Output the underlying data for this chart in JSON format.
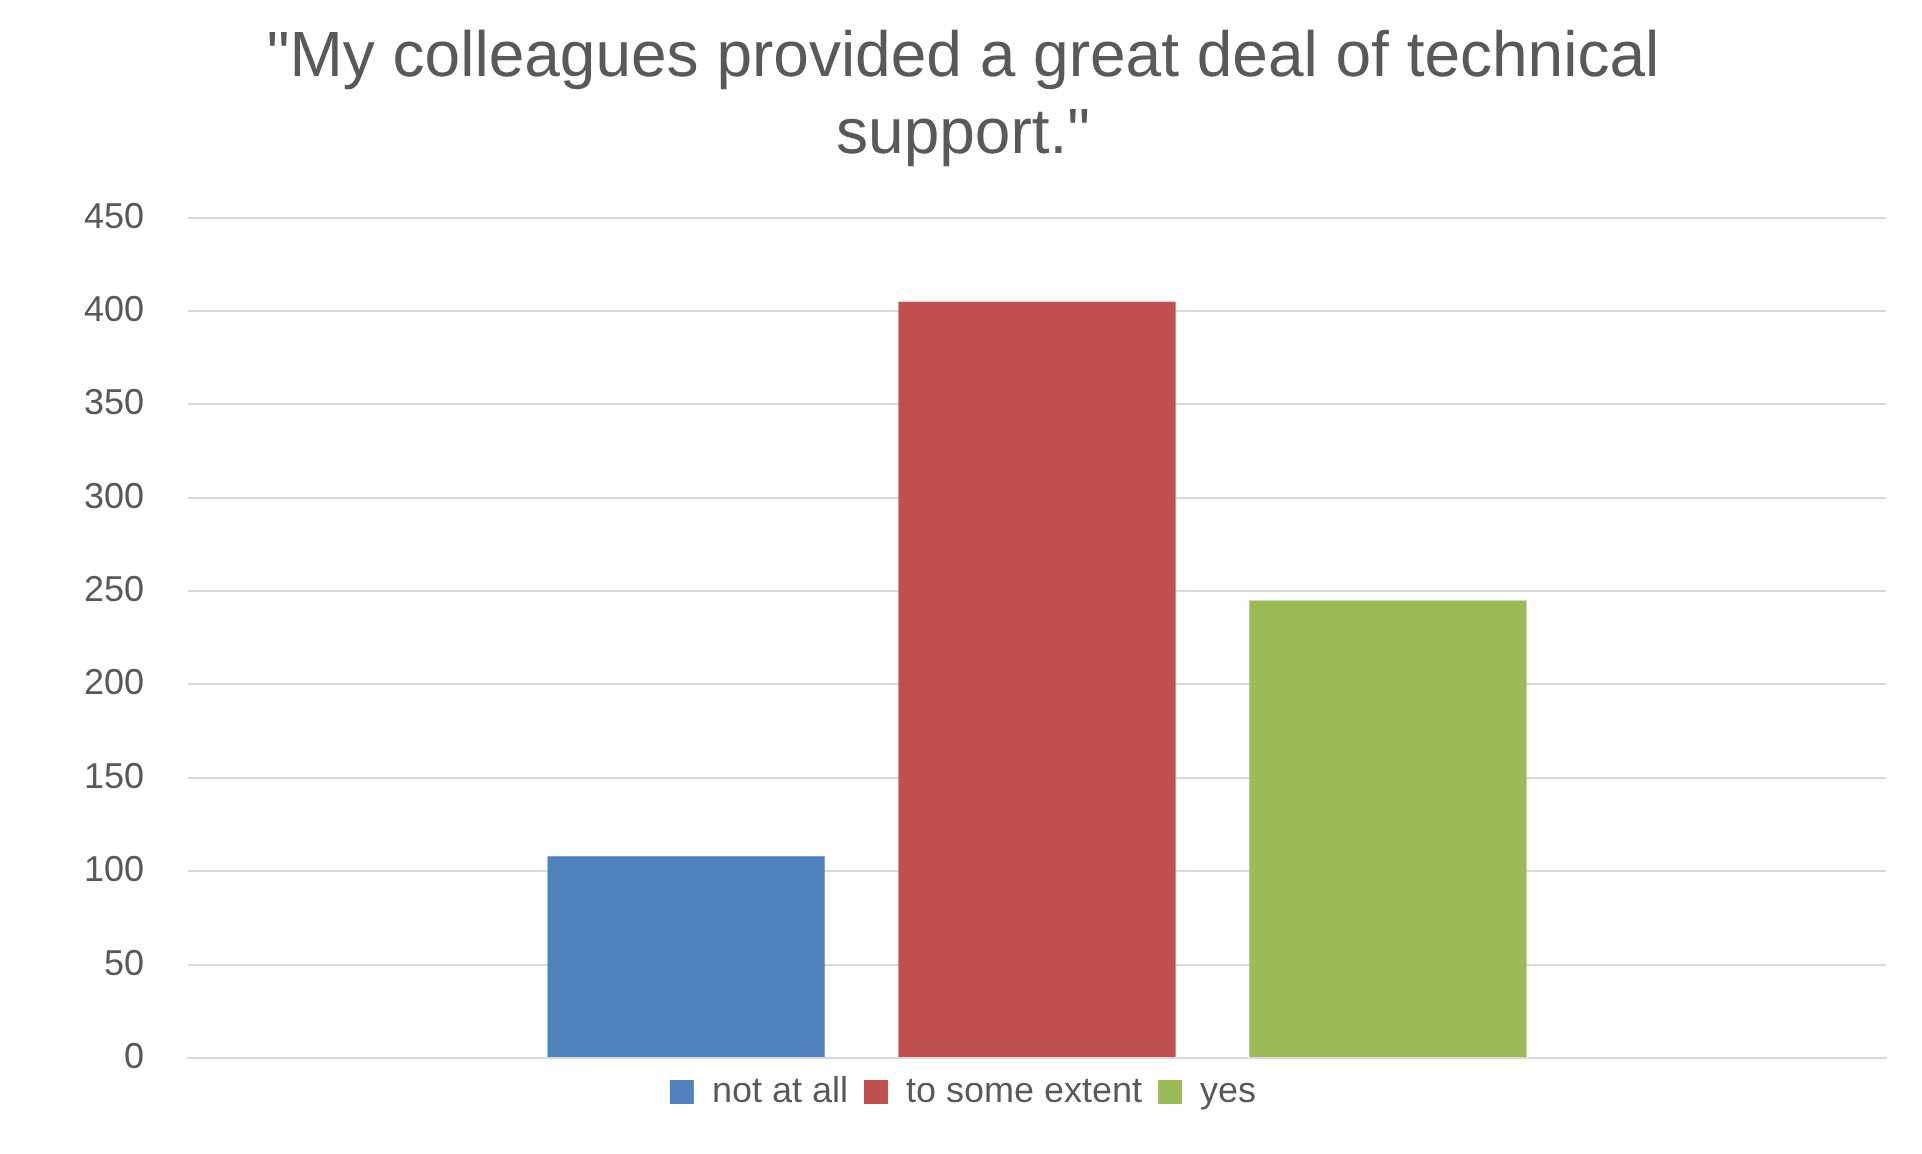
{
  "chart_data": {
    "type": "bar",
    "title": "\"My colleagues provided a great deal of technical support.\"",
    "categories": [
      null
    ],
    "series": [
      {
        "name": "not at all",
        "color": "#4f81bd",
        "values": [
          108
        ]
      },
      {
        "name": "to some extent",
        "color": "#c0504d",
        "values": [
          405
        ]
      },
      {
        "name": "yes",
        "color": "#9bbb59",
        "values": [
          245
        ]
      }
    ],
    "ylim": [
      0,
      450
    ],
    "yticks": [
      0,
      50,
      100,
      150,
      200,
      250,
      300,
      350,
      400,
      450
    ],
    "grid": "y",
    "legend": "bottom"
  }
}
